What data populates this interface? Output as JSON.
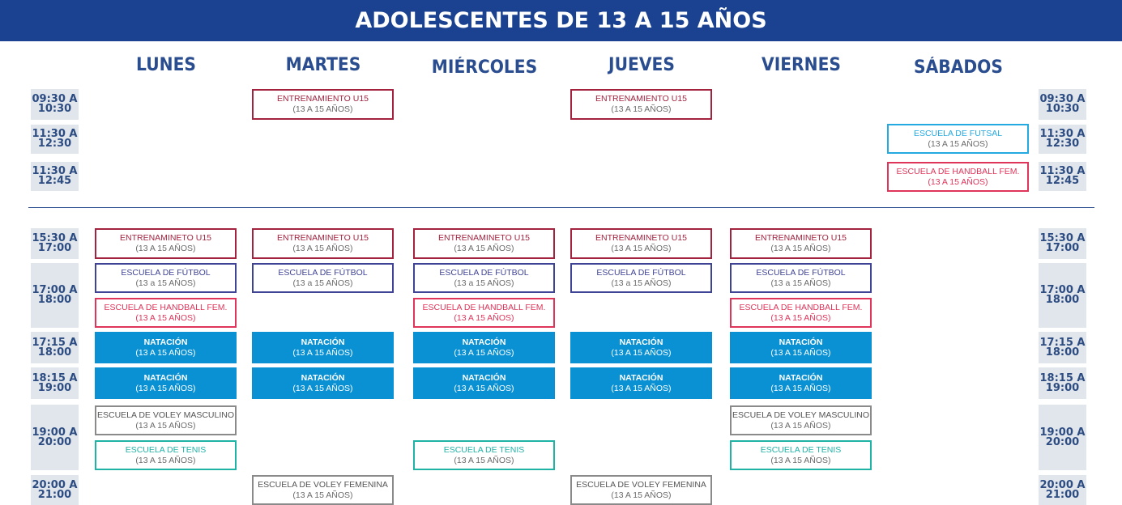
{
  "title": "ADOLESCENTES DE 13 A 15 AÑOS",
  "days": [
    "LUNES",
    "MARTES",
    "MIÉRCOLES",
    "JUEVES",
    "VIERNES",
    "SÁBADOS"
  ],
  "times": [
    {
      "start": "09:30 A",
      "end": "10:30"
    },
    {
      "start": "11:30 A",
      "end": "12:30"
    },
    {
      "start": "11:30 A",
      "end": "12:45"
    },
    {
      "start": "15:30 A",
      "end": "17:00"
    },
    {
      "start": "17:00 A",
      "end": "18:00"
    },
    {
      "start": "17:15 A",
      "end": "18:00"
    },
    {
      "start": "18:15 A",
      "end": "19:00"
    },
    {
      "start": "19:00 A",
      "end": "20:00"
    },
    {
      "start": "20:00 A",
      "end": "21:00"
    }
  ],
  "activities": [
    {
      "name": "ENTRENAMIENTO U15",
      "sub": "(13 A 15 AÑOS)",
      "style": "maroon"
    },
    {
      "name": "ENTRENAMIENTO U15",
      "sub": "(13 A 15 AÑOS)",
      "style": "maroon"
    },
    {
      "name": "ESCUELA DE FUTSAL",
      "sub": "(13 A 15 AÑOS)",
      "style": "cyan"
    },
    {
      "name": "ESCUELA DE HANDBALL FEM.",
      "sub": "(13 A 15 AÑOS)",
      "style": "pink"
    },
    {
      "name": "ENTRENAMINETO U15",
      "sub": "(13 A 15 AÑOS)",
      "style": "maroon"
    },
    {
      "name": "ENTRENAMINETO U15",
      "sub": "(13 A 15 AÑOS)",
      "style": "maroon"
    },
    {
      "name": "ENTRENAMINETO U15",
      "sub": "(13 A 15 AÑOS)",
      "style": "maroon"
    },
    {
      "name": "ENTRENAMINETO U15",
      "sub": "(13 A 15 AÑOS)",
      "style": "maroon"
    },
    {
      "name": "ENTRENAMINETO U15",
      "sub": "(13 A 15 AÑOS)",
      "style": "maroon"
    },
    {
      "name": "ESCUELA DE FÚTBOL",
      "sub": "(13 a 15 AÑOS)",
      "style": "navy"
    },
    {
      "name": "ESCUELA DE FÚTBOL",
      "sub": "(13 a 15 AÑOS)",
      "style": "navy"
    },
    {
      "name": "ESCUELA DE FÚTBOL",
      "sub": "(13 a 15 AÑOS)",
      "style": "navy"
    },
    {
      "name": "ESCUELA DE FÚTBOL",
      "sub": "(13 a 15 AÑOS)",
      "style": "navy"
    },
    {
      "name": "ESCUELA DE FÚTBOL",
      "sub": "(13 a 15 AÑOS)",
      "style": "navy"
    },
    {
      "name": "ESCUELA DE HANDBALL FEM.",
      "sub": "(13 A 15 AÑOS)",
      "style": "pink"
    },
    {
      "name": "ESCUELA DE HANDBALL FEM.",
      "sub": "(13 A 15 AÑOS)",
      "style": "pink"
    },
    {
      "name": "ESCUELA DE HANDBALL FEM.",
      "sub": "(13 A 15 AÑOS)",
      "style": "pink"
    },
    {
      "name": "NATACIÓN",
      "sub": "(13 A 15 AÑOS)",
      "style": "swim"
    },
    {
      "name": "NATACIÓN",
      "sub": "(13 A 15 AÑOS)",
      "style": "swim"
    },
    {
      "name": "NATACIÓN",
      "sub": "(13 A 15 AÑOS)",
      "style": "swim"
    },
    {
      "name": "NATACIÓN",
      "sub": "(13 A 15 AÑOS)",
      "style": "swim"
    },
    {
      "name": "NATACIÓN",
      "sub": "(13 A 15 AÑOS)",
      "style": "swim"
    },
    {
      "name": "NATACIÓN",
      "sub": "(13 A 15 AÑOS)",
      "style": "swim"
    },
    {
      "name": "NATACIÓN",
      "sub": "(13 A 15 AÑOS)",
      "style": "swim"
    },
    {
      "name": "NATACIÓN",
      "sub": "(13 A 15 AÑOS)",
      "style": "swim"
    },
    {
      "name": "NATACIÓN",
      "sub": "(13 A 15 AÑOS)",
      "style": "swim"
    },
    {
      "name": "NATACIÓN",
      "sub": "(13 A 15 AÑOS)",
      "style": "swim"
    },
    {
      "name": "ESCUELA DE VOLEY MASCULINO",
      "sub": "(13 A 15 AÑOS)",
      "style": "grey"
    },
    {
      "name": "ESCUELA DE VOLEY MASCULINO",
      "sub": "(13 A 15 AÑOS)",
      "style": "grey"
    },
    {
      "name": "ESCUELA DE TENIS",
      "sub": "(13 A 15 AÑOS)",
      "style": "teal"
    },
    {
      "name": "ESCUELA DE TENIS",
      "sub": "(13 A 15 AÑOS)",
      "style": "teal"
    },
    {
      "name": "ESCUELA DE TENIS",
      "sub": "(13 A 15 AÑOS)",
      "style": "teal"
    },
    {
      "name": "ESCUELA DE VOLEY FEMENINA",
      "sub": "(13 A 15 AÑOS)",
      "style": "grey"
    },
    {
      "name": "ESCUELA DE VOLEY FEMENINA",
      "sub": "(13 A 15 AÑOS)",
      "style": "grey"
    }
  ],
  "colors": {
    "banner": "#1b4290",
    "day_text": "#2a4d8f",
    "time_bg": "#e1e6ec",
    "maroon": "#a3233f",
    "navy": "#3f4396",
    "pink": "#e0355a",
    "grey": "#8a8a8a",
    "teal": "#1fb3a6",
    "cyan": "#24a9e1",
    "swim": "#0a91d4"
  }
}
